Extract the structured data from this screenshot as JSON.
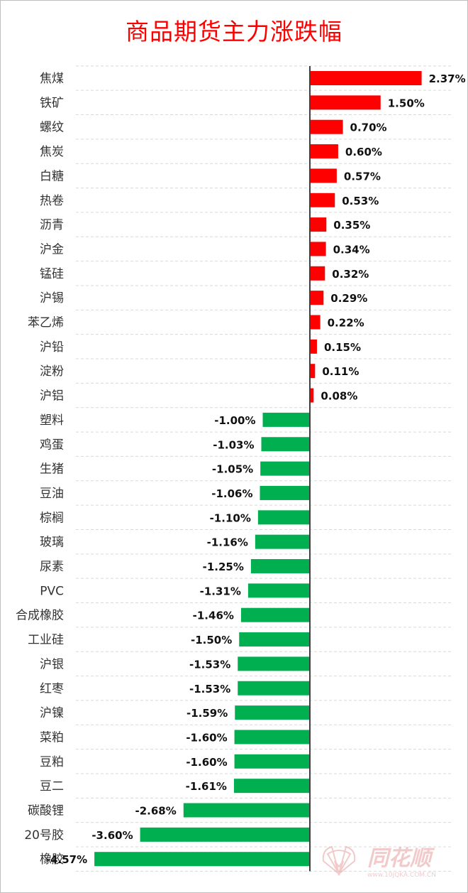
{
  "chart_data": {
    "type": "bar",
    "orientation": "horizontal",
    "title": "商品期货主力涨跌幅",
    "unit": "%",
    "grid": true,
    "colors": {
      "positive": "#ff0000",
      "negative": "#00b050",
      "title": "#ff0000"
    },
    "xlim": [
      -4.57,
      2.37
    ],
    "categories": [
      "焦煤",
      "铁矿",
      "螺纹",
      "焦炭",
      "白糖",
      "热卷",
      "沥青",
      "沪金",
      "锰硅",
      "沪锡",
      "苯乙烯",
      "沪铅",
      "淀粉",
      "沪铝",
      "塑料",
      "鸡蛋",
      "生猪",
      "豆油",
      "棕榈",
      "玻璃",
      "尿素",
      "PVC",
      "合成橡胶",
      "工业硅",
      "沪银",
      "红枣",
      "沪镍",
      "菜粕",
      "豆粕",
      "豆二",
      "碳酸锂",
      "20号胶",
      "橡胶"
    ],
    "values": [
      2.37,
      1.5,
      0.7,
      0.6,
      0.57,
      0.53,
      0.35,
      0.34,
      0.32,
      0.29,
      0.22,
      0.15,
      0.11,
      0.08,
      -1.0,
      -1.03,
      -1.05,
      -1.06,
      -1.1,
      -1.16,
      -1.25,
      -1.31,
      -1.46,
      -1.5,
      -1.53,
      -1.53,
      -1.59,
      -1.6,
      -1.6,
      -1.61,
      -2.68,
      -3.6,
      -4.57
    ],
    "labels": [
      "2.37%",
      "1.50%",
      "0.70%",
      "0.60%",
      "0.57%",
      "0.53%",
      "0.35%",
      "0.34%",
      "0.32%",
      "0.29%",
      "0.22%",
      "0.15%",
      "0.11%",
      "0.08%",
      "-1.00%",
      "-1.03%",
      "-1.05%",
      "-1.06%",
      "-1.10%",
      "-1.16%",
      "-1.25%",
      "-1.31%",
      "-1.46%",
      "-1.50%",
      "-1.53%",
      "-1.53%",
      "-1.59%",
      "-1.60%",
      "-1.60%",
      "-1.61%",
      "-2.68%",
      "-3.60%",
      "-4.57%"
    ]
  },
  "watermark": {
    "brand": "同花顺",
    "site": "www.10JQKA.COM.CN",
    "color": "#e8a0a0"
  }
}
